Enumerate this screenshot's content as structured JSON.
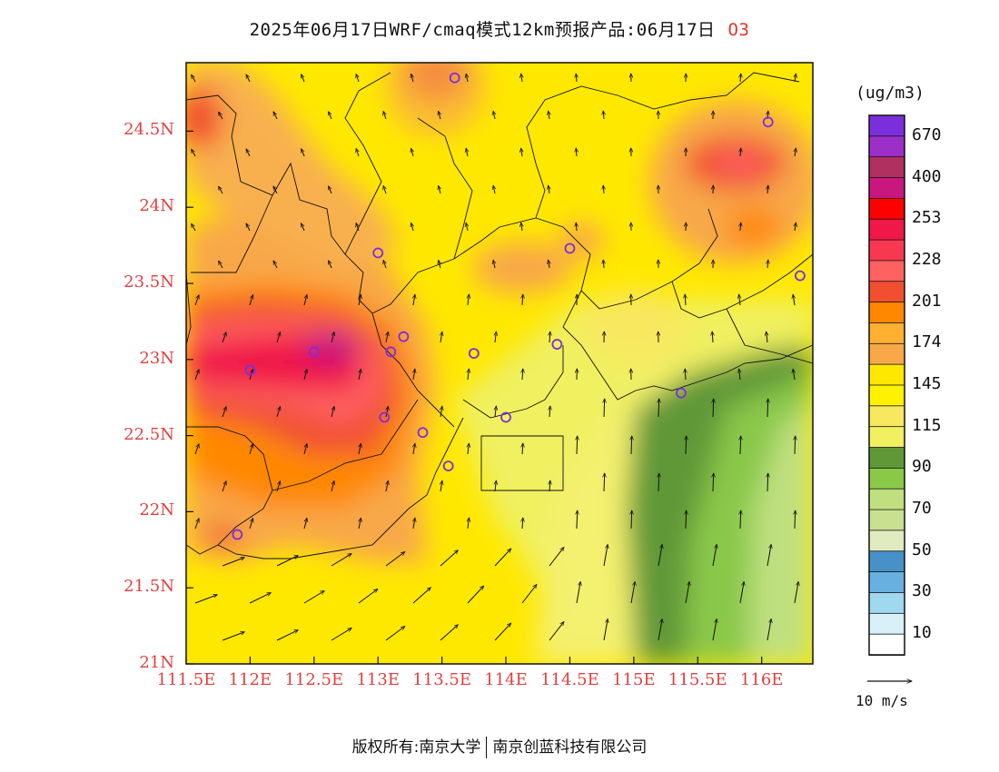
{
  "title": {
    "text": "2025年06月17日WRF/cmaq模式12km预报产品:06月17日",
    "species": "O3"
  },
  "axes": {
    "lat_labels": [
      "24.5N",
      "24N",
      "23.5N",
      "23N",
      "22.5N",
      "22N",
      "21.5N",
      "21N"
    ],
    "lat_values": [
      24.5,
      24,
      23.5,
      23,
      22.5,
      22,
      21.5,
      21
    ],
    "lon_labels": [
      "111.5E",
      "112E",
      "112.5E",
      "113E",
      "113.5E",
      "114E",
      "114.5E",
      "115E",
      "115.5E",
      "116E"
    ],
    "lon_values": [
      111.5,
      112,
      112.5,
      113,
      113.5,
      114,
      114.5,
      115,
      115.5,
      116
    ],
    "lon_range": [
      111.5,
      116.4
    ],
    "lat_range": [
      21,
      24.95
    ]
  },
  "colorbar": {
    "unit": "(ug/m3)",
    "labels": [
      "670",
      "400",
      "253",
      "228",
      "201",
      "174",
      "145",
      "115",
      "90",
      "70",
      "50",
      "30",
      "10"
    ],
    "colors": [
      "#7b2fdc",
      "#9b2fc8",
      "#b03060",
      "#c81880",
      "#ff0000",
      "#f01848",
      "#f83850",
      "#ff6060",
      "#f05030",
      "#ff8800",
      "#ffb030",
      "#f8a848",
      "#ffe800",
      "#fff200",
      "#f8e860",
      "#f0f060",
      "#609838",
      "#8ac848",
      "#c0e080",
      "#c8e090",
      "#e0ecc0",
      "#4890c8",
      "#68b0e0",
      "#a0d8f0",
      "#d8f0f8",
      "#ffffff"
    ],
    "colors_note": "top to bottom"
  },
  "wind_reference": {
    "label": "10  m/s"
  },
  "footer": {
    "left": "版权所有:南京大学",
    "right": "南京创蓝科技有限公司"
  },
  "stations": [
    {
      "lon": 113.6,
      "lat": 24.85
    },
    {
      "lon": 116.05,
      "lat": 24.56
    },
    {
      "lon": 113.0,
      "lat": 23.7
    },
    {
      "lon": 114.5,
      "lat": 23.73
    },
    {
      "lon": 116.3,
      "lat": 23.55
    },
    {
      "lon": 112.5,
      "lat": 23.05
    },
    {
      "lon": 113.1,
      "lat": 23.05
    },
    {
      "lon": 113.2,
      "lat": 23.15
    },
    {
      "lon": 113.75,
      "lat": 23.04
    },
    {
      "lon": 114.4,
      "lat": 23.1
    },
    {
      "lon": 112.0,
      "lat": 22.93
    },
    {
      "lon": 115.37,
      "lat": 22.78
    },
    {
      "lon": 113.05,
      "lat": 22.62
    },
    {
      "lon": 113.35,
      "lat": 22.52
    },
    {
      "lon": 114.0,
      "lat": 22.62
    },
    {
      "lon": 113.55,
      "lat": 22.3
    },
    {
      "lon": 111.9,
      "lat": 21.85
    }
  ]
}
